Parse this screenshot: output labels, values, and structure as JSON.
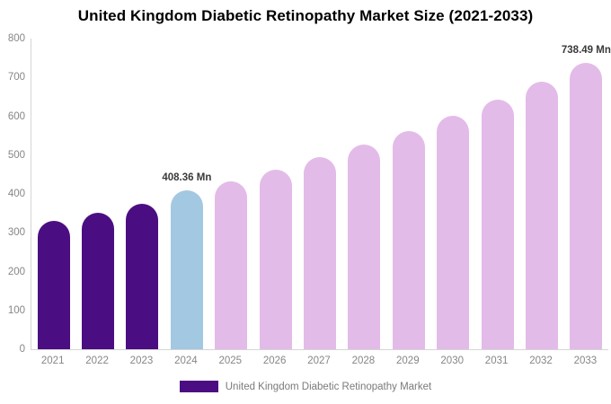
{
  "chart_data": {
    "type": "bar",
    "title": "United Kingdom Diabetic Retinopathy Market Size (2021-2033)",
    "categories": [
      "2021",
      "2022",
      "2023",
      "2024",
      "2025",
      "2026",
      "2027",
      "2028",
      "2029",
      "2030",
      "2031",
      "2032",
      "2033"
    ],
    "values": [
      330,
      352,
      374,
      408.36,
      432,
      462,
      494,
      527,
      561,
      601,
      642,
      688,
      738.49
    ],
    "bar_colors": [
      "#4B0E82",
      "#4B0E82",
      "#4B0E82",
      "#A3C8E1",
      "#E3BBE8",
      "#E3BBE8",
      "#E3BBE8",
      "#E3BBE8",
      "#E3BBE8",
      "#E3BBE8",
      "#E3BBE8",
      "#E3BBE8",
      "#E3BBE8"
    ],
    "data_labels": {
      "2024": "408.36 Mn",
      "2033": "738.49 Mn"
    },
    "xlabel": "",
    "ylabel": "",
    "ylim": [
      0,
      800
    ],
    "ytick_step": 100,
    "yticks": [
      "0",
      "100",
      "200",
      "300",
      "400",
      "500",
      "600",
      "700",
      "800"
    ],
    "grid": false,
    "legend": {
      "position": "bottom",
      "entries": [
        {
          "label": "United Kingdom Diabetic Retinopathy Market",
          "color": "#4B0E82"
        }
      ]
    },
    "colors": {
      "historical_bar": "#4B0E82",
      "base_year_bar": "#A3C8E1",
      "forecast_bar": "#E3BBE8",
      "axis_line": "#d6d6d6",
      "tick_text": "#868686",
      "data_label_text": "#3a3a3a",
      "legend_text": "#7a7a7a",
      "title_text": "#000000"
    }
  }
}
